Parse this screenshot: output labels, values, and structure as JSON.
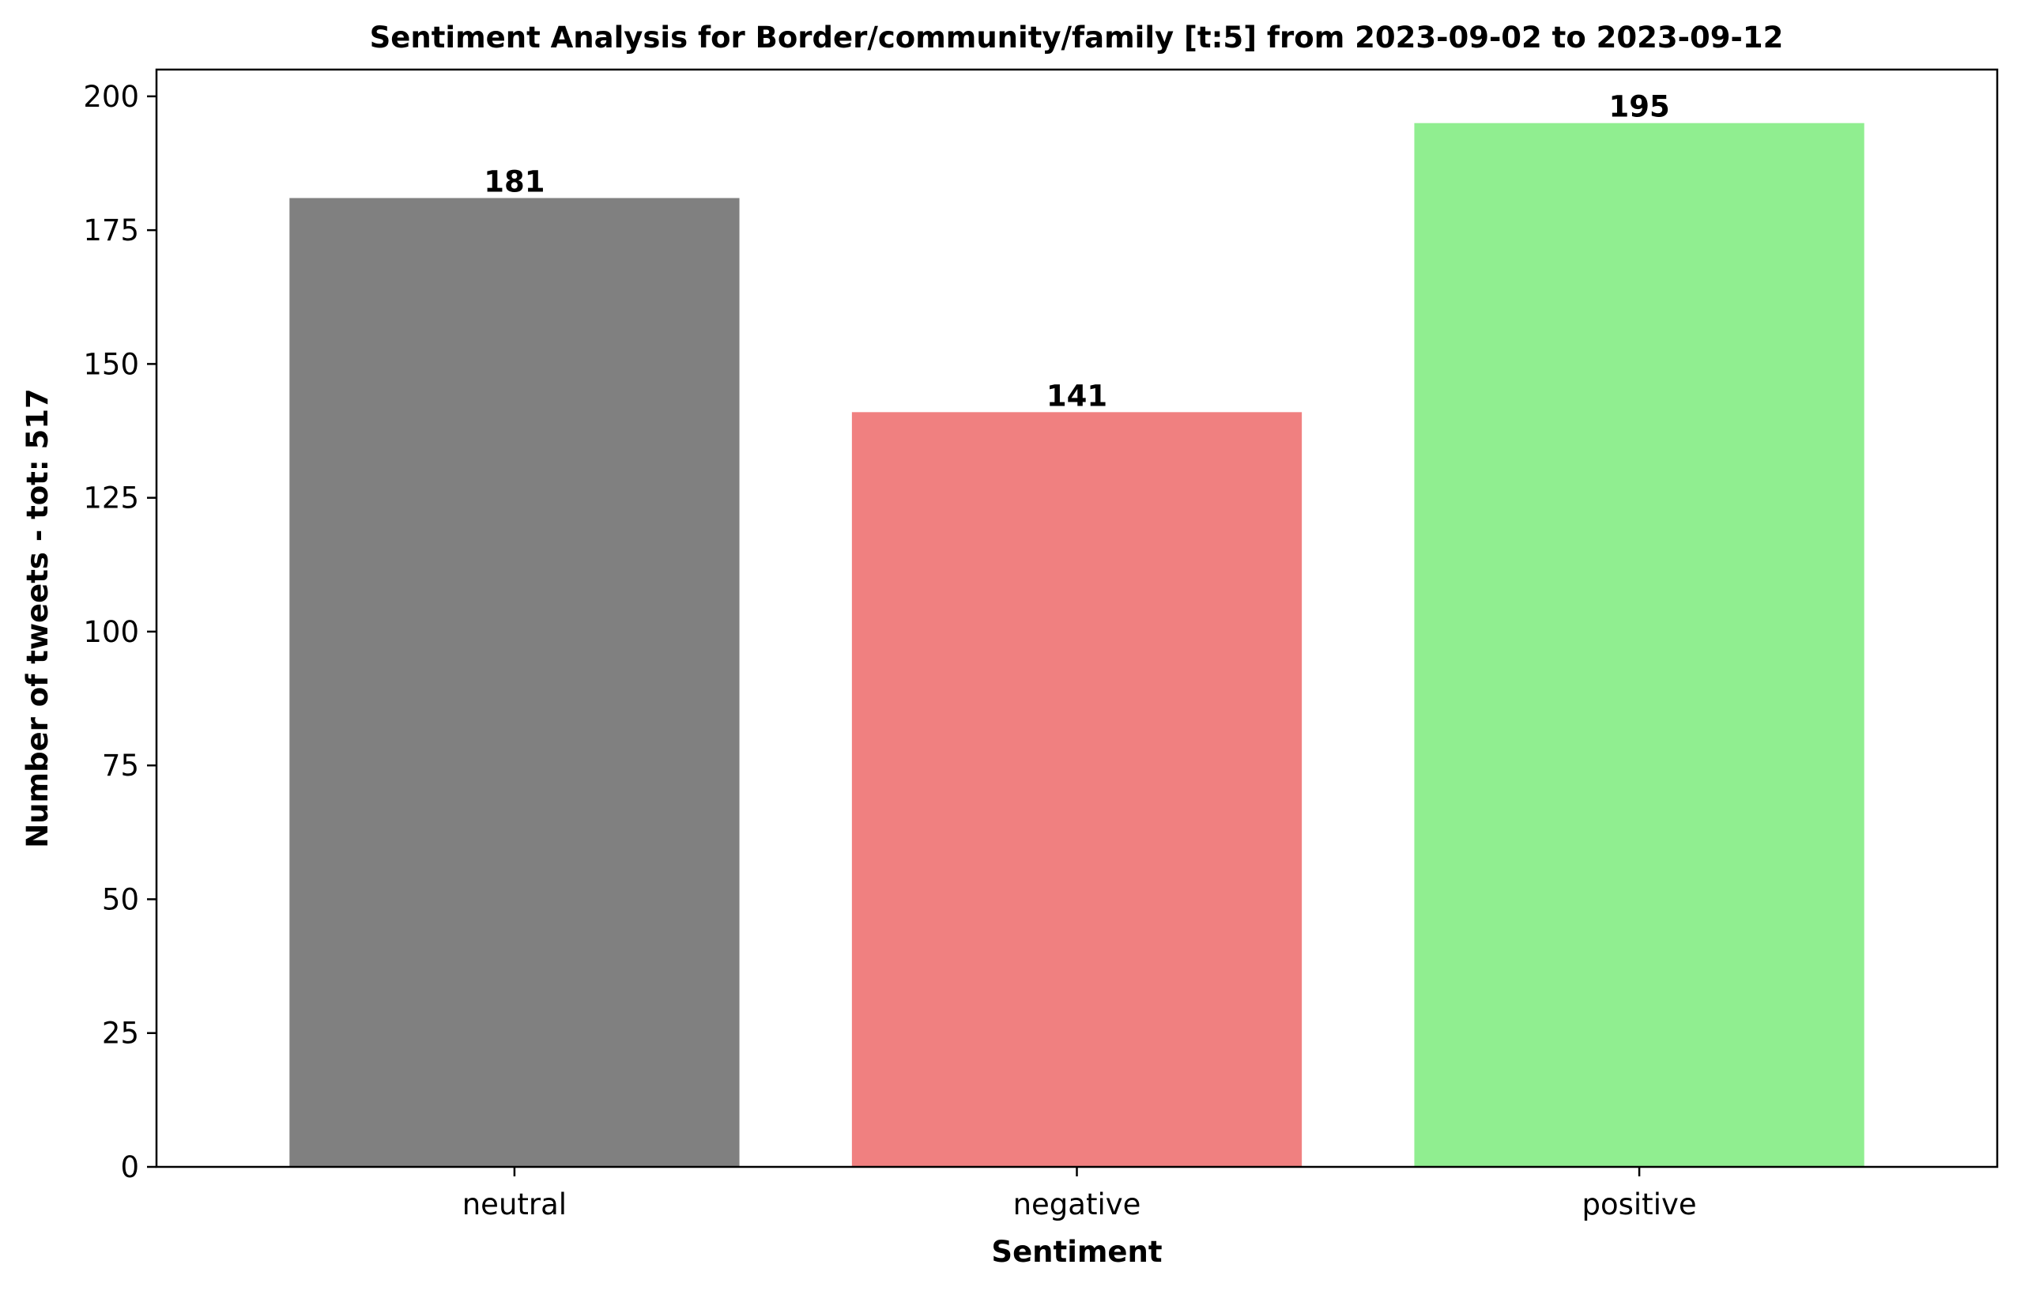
{
  "chart_data": {
    "type": "bar",
    "title": "Sentiment Analysis for Border/community/family [t:5] from 2023-09-02 to 2023-09-12",
    "xlabel": "Sentiment",
    "ylabel": "Number of tweets - tot: 517",
    "categories": [
      "neutral",
      "negative",
      "positive"
    ],
    "values": [
      181,
      141,
      195
    ],
    "colors": [
      "#808080",
      "#f08080",
      "#90ee90"
    ],
    "ylim": [
      0,
      205
    ],
    "yticks": [
      0,
      25,
      50,
      75,
      100,
      125,
      150,
      175,
      200
    ],
    "grid": false,
    "legend": "none"
  }
}
